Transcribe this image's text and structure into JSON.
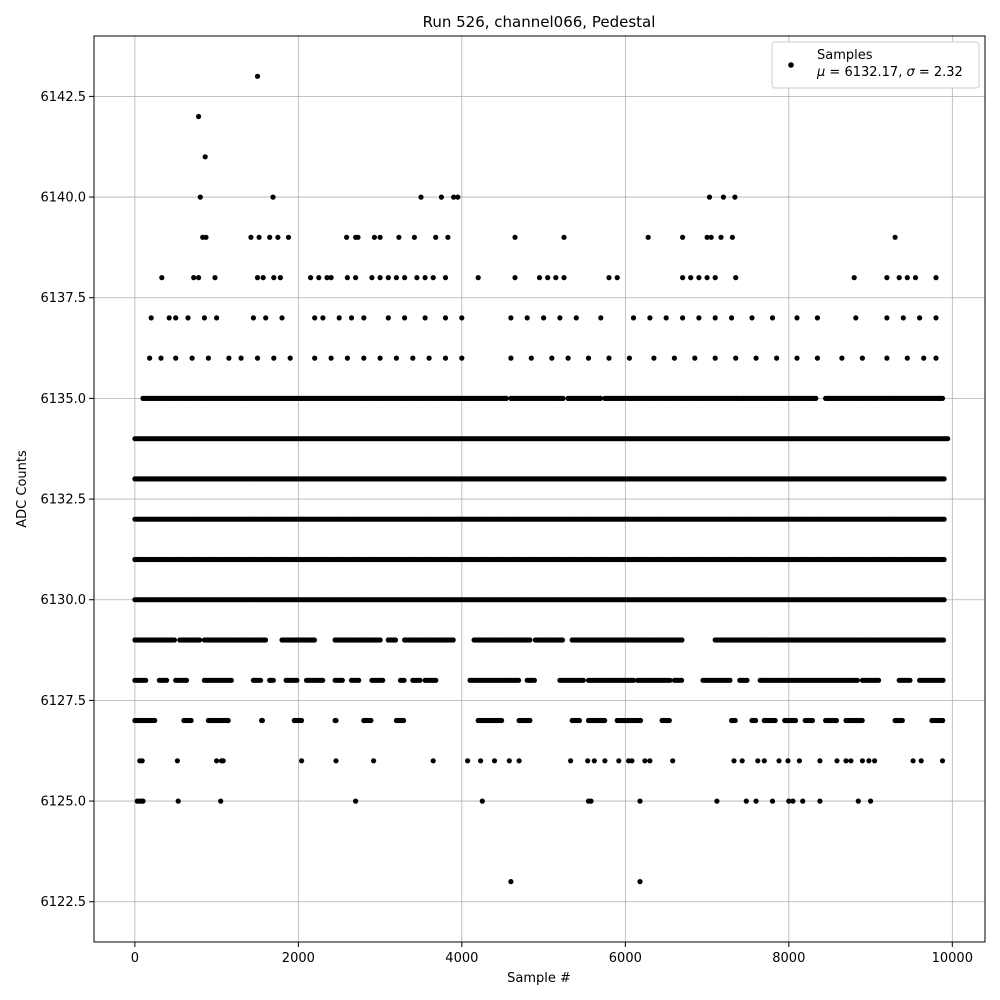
{
  "chart_data": {
    "type": "scatter",
    "title": "Run 526, channel066, Pedestal",
    "xlabel": "Sample #",
    "ylabel": "ADC Counts",
    "xlim": [
      -500,
      10400
    ],
    "ylim": [
      6121.5,
      6144.0
    ],
    "xticks": [
      0,
      2000,
      4000,
      6000,
      8000,
      10000
    ],
    "xtick_labels": [
      "0",
      "2000",
      "4000",
      "6000",
      "8000",
      "10000"
    ],
    "yticks": [
      6122.5,
      6125.0,
      6127.5,
      6130.0,
      6132.5,
      6135.0,
      6137.5,
      6140.0,
      6142.5
    ],
    "ytick_labels": [
      "6122.5",
      "6125.0",
      "6127.5",
      "6130.0",
      "6132.5",
      "6135.0",
      "6137.5",
      "6140.0",
      "6142.5"
    ],
    "grid": true,
    "legend": {
      "placement": "top-right",
      "series_label": "Samples",
      "stats_label_parts": [
        "μ",
        " = 6132.17, ",
        "σ",
        " = 2.32"
      ]
    },
    "series": [
      {
        "name": "Samples",
        "color": "#000000",
        "marker": "circle",
        "points": [
          [
            1500,
            6143
          ],
          [
            780,
            6142
          ],
          [
            860,
            6141
          ],
          [
            800,
            6140
          ],
          [
            1690,
            6140
          ],
          [
            3500,
            6140
          ],
          [
            3750,
            6140
          ],
          [
            3900,
            6140
          ],
          [
            3950,
            6140
          ],
          [
            7030,
            6140
          ],
          [
            7200,
            6140
          ],
          [
            7340,
            6140
          ],
          [
            830,
            6139
          ],
          [
            870,
            6139
          ],
          [
            1420,
            6139
          ],
          [
            1520,
            6139
          ],
          [
            1650,
            6139
          ],
          [
            1750,
            6139
          ],
          [
            1880,
            6139
          ],
          [
            2590,
            6139
          ],
          [
            2700,
            6139
          ],
          [
            2730,
            6139
          ],
          [
            2930,
            6139
          ],
          [
            3000,
            6139
          ],
          [
            3230,
            6139
          ],
          [
            3420,
            6139
          ],
          [
            3680,
            6139
          ],
          [
            3830,
            6139
          ],
          [
            4650,
            6139
          ],
          [
            5250,
            6139
          ],
          [
            6280,
            6139
          ],
          [
            6700,
            6139
          ],
          [
            7000,
            6139
          ],
          [
            7050,
            6139
          ],
          [
            7170,
            6139
          ],
          [
            7310,
            6139
          ],
          [
            9300,
            6139
          ],
          [
            330,
            6138
          ],
          [
            720,
            6138
          ],
          [
            780,
            6138
          ],
          [
            980,
            6138
          ],
          [
            1500,
            6138
          ],
          [
            1570,
            6138
          ],
          [
            1700,
            6138
          ],
          [
            1780,
            6138
          ],
          [
            2150,
            6138
          ],
          [
            2250,
            6138
          ],
          [
            2350,
            6138
          ],
          [
            2400,
            6138
          ],
          [
            2600,
            6138
          ],
          [
            2700,
            6138
          ],
          [
            2900,
            6138
          ],
          [
            3000,
            6138
          ],
          [
            3100,
            6138
          ],
          [
            3200,
            6138
          ],
          [
            3300,
            6138
          ],
          [
            3450,
            6138
          ],
          [
            3550,
            6138
          ],
          [
            3650,
            6138
          ],
          [
            3800,
            6138
          ],
          [
            4200,
            6138
          ],
          [
            4650,
            6138
          ],
          [
            4950,
            6138
          ],
          [
            5050,
            6138
          ],
          [
            5150,
            6138
          ],
          [
            5250,
            6138
          ],
          [
            5800,
            6138
          ],
          [
            5900,
            6138
          ],
          [
            6700,
            6138
          ],
          [
            6800,
            6138
          ],
          [
            6900,
            6138
          ],
          [
            7000,
            6138
          ],
          [
            7100,
            6138
          ],
          [
            7350,
            6138
          ],
          [
            8800,
            6138
          ],
          [
            9200,
            6138
          ],
          [
            9350,
            6138
          ],
          [
            9450,
            6138
          ],
          [
            9550,
            6138
          ],
          [
            9800,
            6138
          ],
          [
            200,
            6137
          ],
          [
            420,
            6137
          ],
          [
            500,
            6137
          ],
          [
            650,
            6137
          ],
          [
            850,
            6137
          ],
          [
            1000,
            6137
          ],
          [
            1450,
            6137
          ],
          [
            1600,
            6137
          ],
          [
            1800,
            6137
          ],
          [
            2200,
            6137
          ],
          [
            2300,
            6137
          ],
          [
            2500,
            6137
          ],
          [
            2650,
            6137
          ],
          [
            2800,
            6137
          ],
          [
            3100,
            6137
          ],
          [
            3300,
            6137
          ],
          [
            3550,
            6137
          ],
          [
            3800,
            6137
          ],
          [
            4000,
            6137
          ],
          [
            4600,
            6137
          ],
          [
            4800,
            6137
          ],
          [
            5000,
            6137
          ],
          [
            5200,
            6137
          ],
          [
            5400,
            6137
          ],
          [
            5700,
            6137
          ],
          [
            6100,
            6137
          ],
          [
            6300,
            6137
          ],
          [
            6500,
            6137
          ],
          [
            6700,
            6137
          ],
          [
            6900,
            6137
          ],
          [
            7100,
            6137
          ],
          [
            7300,
            6137
          ],
          [
            7550,
            6137
          ],
          [
            7800,
            6137
          ],
          [
            8100,
            6137
          ],
          [
            8350,
            6137
          ],
          [
            8820,
            6137
          ],
          [
            9200,
            6137
          ],
          [
            9400,
            6137
          ],
          [
            9600,
            6137
          ],
          [
            9800,
            6137
          ],
          [
            180,
            6136
          ],
          [
            320,
            6136
          ],
          [
            500,
            6136
          ],
          [
            700,
            6136
          ],
          [
            900,
            6136
          ],
          [
            1150,
            6136
          ],
          [
            1300,
            6136
          ],
          [
            1500,
            6136
          ],
          [
            1700,
            6136
          ],
          [
            1900,
            6136
          ],
          [
            2200,
            6136
          ],
          [
            2400,
            6136
          ],
          [
            2600,
            6136
          ],
          [
            2800,
            6136
          ],
          [
            3000,
            6136
          ],
          [
            3200,
            6136
          ],
          [
            3400,
            6136
          ],
          [
            3600,
            6136
          ],
          [
            3800,
            6136
          ],
          [
            4000,
            6136
          ],
          [
            4600,
            6136
          ],
          [
            4850,
            6136
          ],
          [
            5100,
            6136
          ],
          [
            5300,
            6136
          ],
          [
            5550,
            6136
          ],
          [
            5800,
            6136
          ],
          [
            6050,
            6136
          ],
          [
            6350,
            6136
          ],
          [
            6600,
            6136
          ],
          [
            6850,
            6136
          ],
          [
            7100,
            6136
          ],
          [
            7350,
            6136
          ],
          [
            7600,
            6136
          ],
          [
            7850,
            6136
          ],
          [
            8100,
            6136
          ],
          [
            8350,
            6136
          ],
          [
            8650,
            6136
          ],
          [
            8900,
            6136
          ],
          [
            9200,
            6136
          ],
          [
            9450,
            6136
          ],
          [
            9650,
            6136
          ],
          [
            9800,
            6136
          ],
          [
            30,
            6125
          ],
          [
            60,
            6125
          ],
          [
            80,
            6125
          ],
          [
            100,
            6125
          ],
          [
            530,
            6125
          ],
          [
            1050,
            6125
          ],
          [
            2700,
            6125
          ],
          [
            4250,
            6125
          ],
          [
            5550,
            6125
          ],
          [
            5580,
            6125
          ],
          [
            6180,
            6125
          ],
          [
            7120,
            6125
          ],
          [
            7480,
            6125
          ],
          [
            7600,
            6125
          ],
          [
            7800,
            6125
          ],
          [
            8000,
            6125
          ],
          [
            8050,
            6125
          ],
          [
            8170,
            6125
          ],
          [
            8380,
            6125
          ],
          [
            8850,
            6125
          ],
          [
            9000,
            6125
          ],
          [
            4600,
            6123
          ],
          [
            6180,
            6123
          ]
        ]
      }
    ],
    "dense_rows": [
      {
        "y": 6126,
        "points": [
          60,
          90,
          520,
          1000,
          1060,
          1080,
          2040,
          2460,
          2920,
          3650,
          4070,
          4230,
          4400,
          4580,
          4700,
          5330,
          5540,
          5620,
          5750,
          5920,
          6040,
          6080,
          6240,
          6300,
          6580,
          7330,
          7430,
          7620,
          7700,
          7880,
          7990,
          8130,
          8380,
          8590,
          8700,
          8760,
          8900,
          8980,
          9050,
          9520,
          9620,
          9880
        ]
      },
      {
        "y": 6127,
        "x_ranges": [
          [
            0,
            260
          ],
          [
            600,
            700
          ],
          [
            900,
            1150
          ],
          [
            1550,
            1560
          ],
          [
            1950,
            2050
          ],
          [
            2450,
            2460
          ],
          [
            2800,
            2900
          ],
          [
            3200,
            3300
          ],
          [
            4200,
            4500
          ],
          [
            4700,
            4850
          ],
          [
            5350,
            5450
          ],
          [
            5550,
            5750
          ],
          [
            5900,
            6200
          ],
          [
            6450,
            6550
          ],
          [
            7300,
            7350
          ],
          [
            7550,
            7600
          ],
          [
            7700,
            7850
          ],
          [
            7950,
            8100
          ],
          [
            8200,
            8300
          ],
          [
            8450,
            8600
          ],
          [
            8700,
            8900
          ],
          [
            9300,
            9400
          ],
          [
            9750,
            9900
          ]
        ]
      },
      {
        "y": 6128,
        "x_ranges": [
          [
            0,
            150
          ],
          [
            300,
            400
          ],
          [
            500,
            650
          ],
          [
            850,
            1200
          ],
          [
            1450,
            1550
          ],
          [
            1650,
            1700
          ],
          [
            1850,
            2000
          ],
          [
            2100,
            2300
          ],
          [
            2450,
            2550
          ],
          [
            2650,
            2750
          ],
          [
            2900,
            3050
          ],
          [
            3250,
            3300
          ],
          [
            3400,
            3500
          ],
          [
            3550,
            3700
          ],
          [
            4100,
            4700
          ],
          [
            4800,
            4900
          ],
          [
            5200,
            5500
          ],
          [
            5550,
            6100
          ],
          [
            6150,
            6550
          ],
          [
            6600,
            6700
          ],
          [
            6950,
            7300
          ],
          [
            7400,
            7500
          ],
          [
            7650,
            8850
          ],
          [
            8900,
            9100
          ],
          [
            9350,
            9500
          ],
          [
            9600,
            9900
          ]
        ]
      },
      {
        "y": 6129,
        "x_ranges": [
          [
            0,
            500
          ],
          [
            550,
            800
          ],
          [
            850,
            1600
          ],
          [
            1800,
            2200
          ],
          [
            2450,
            3000
          ],
          [
            3100,
            3200
          ],
          [
            3300,
            3900
          ],
          [
            4150,
            4850
          ],
          [
            4900,
            5250
          ],
          [
            5350,
            6700
          ],
          [
            7100,
            9900
          ]
        ]
      },
      {
        "y": 6130,
        "x_ranges": [
          [
            0,
            9900
          ]
        ]
      },
      {
        "y": 6131,
        "x_ranges": [
          [
            0,
            9900
          ]
        ]
      },
      {
        "y": 6132,
        "x_ranges": [
          [
            0,
            9900
          ]
        ]
      },
      {
        "y": 6133,
        "x_ranges": [
          [
            0,
            9900
          ]
        ]
      },
      {
        "y": 6134,
        "x_ranges": [
          [
            0,
            9950
          ]
        ]
      },
      {
        "y": 6135,
        "x_ranges": [
          [
            100,
            4550
          ],
          [
            4600,
            5250
          ],
          [
            5300,
            5700
          ],
          [
            5750,
            7450
          ],
          [
            7450,
            8350
          ],
          [
            8450,
            9900
          ]
        ]
      }
    ]
  }
}
